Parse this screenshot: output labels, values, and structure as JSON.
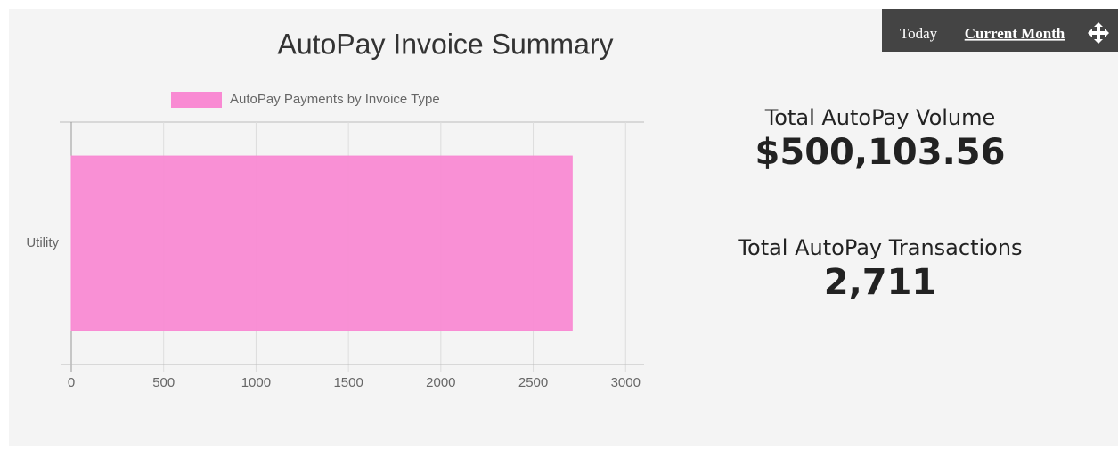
{
  "header": {
    "title": "AutoPay Invoice Summary"
  },
  "toolbar": {
    "options": [
      "Today",
      "Current Month"
    ]
  },
  "chart_data": {
    "type": "bar",
    "orientation": "horizontal",
    "categories": [
      "Utility"
    ],
    "series": [
      {
        "name": "AutoPay Payments by Invoice Type",
        "color": "#f98ad3",
        "values": [
          2711
        ]
      }
    ],
    "xlim": [
      0,
      3100
    ],
    "xticks": [
      0,
      500,
      1000,
      1500,
      2000,
      2500,
      3000
    ],
    "grid": true
  },
  "stats": [
    {
      "label": "Total AutoPay Volume",
      "value": "$500,103.56"
    },
    {
      "label": "Total AutoPay Transactions",
      "value": "2,711"
    }
  ]
}
